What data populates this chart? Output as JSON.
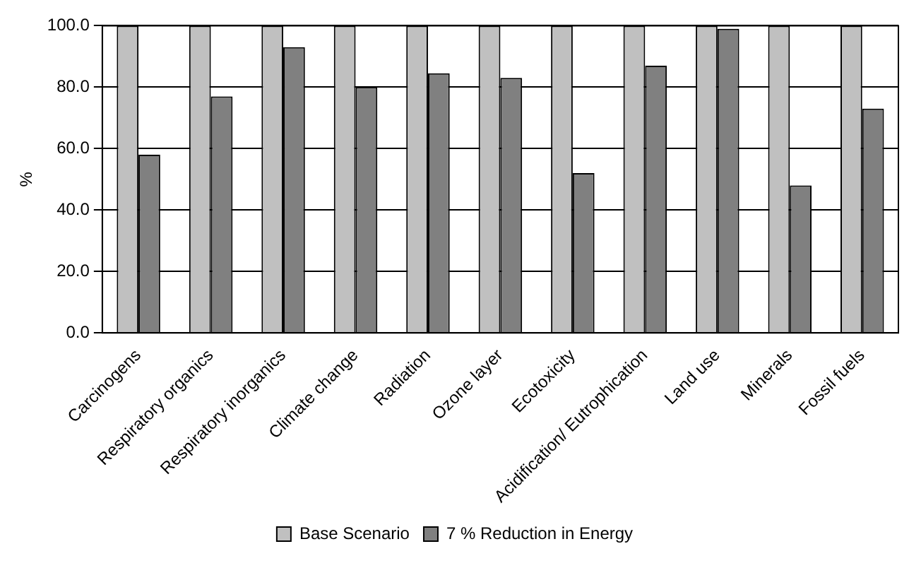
{
  "chart_data": {
    "type": "bar",
    "ylabel": "%",
    "categories": [
      "Carcinogens",
      "Respiratory organics",
      "Respiratory inorganics",
      "Climate change",
      "Radiation",
      "Ozone layer",
      "Ecotoxicity",
      "Acidification/ Eutrophication",
      "Land use",
      "Minerals",
      "Fossil fuels"
    ],
    "series": [
      {
        "name": "Base Scenario",
        "color": "#c0c0c0",
        "values": [
          100,
          100,
          100,
          100,
          100,
          100,
          100,
          100,
          100,
          100,
          100
        ]
      },
      {
        "name": "7 % Reduction in Energy",
        "color": "#808080",
        "values": [
          58,
          77,
          93,
          80,
          84.5,
          83,
          52,
          87,
          99,
          48,
          73
        ]
      }
    ],
    "ylim": [
      0,
      100
    ],
    "yticks": [
      {
        "value": 0,
        "label": "0.0"
      },
      {
        "value": 20,
        "label": "20.0"
      },
      {
        "value": 40,
        "label": "40.0"
      },
      {
        "value": 60,
        "label": "60.0"
      },
      {
        "value": 80,
        "label": "80.0"
      },
      {
        "value": 100,
        "label": "100.0"
      }
    ],
    "grid": "y",
    "legend": "bottom"
  }
}
